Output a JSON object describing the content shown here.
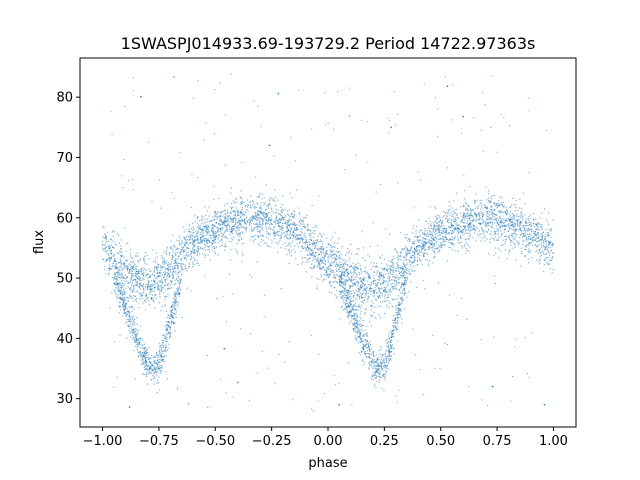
{
  "chart_data": {
    "type": "scatter",
    "title": "1SWASPJ014933.69-193729.2 Period 14722.97363s",
    "xlabel": "phase",
    "ylabel": "flux",
    "xlim": [
      -1.1,
      1.1
    ],
    "ylim": [
      25.3,
      86.5
    ],
    "x_ticks": [
      -1.0,
      -0.75,
      -0.5,
      -0.25,
      0.0,
      0.25,
      0.5,
      0.75,
      1.0
    ],
    "x_tick_labels": [
      "−1.00",
      "−0.75",
      "−0.50",
      "−0.25",
      "0.00",
      "0.25",
      "0.50",
      "0.75",
      "1.00"
    ],
    "y_ticks": [
      30,
      40,
      50,
      60,
      70,
      80
    ],
    "y_tick_labels": [
      "30",
      "40",
      "50",
      "60",
      "70",
      "80"
    ],
    "grid": false,
    "marker_color": "#1f77b4",
    "series": [
      {
        "envelope": {
          "phase": [
            -1.0,
            -0.95,
            -0.9,
            -0.85,
            -0.8,
            -0.75,
            -0.7,
            -0.65,
            -0.6,
            -0.55,
            -0.5,
            -0.45,
            -0.4,
            -0.35,
            -0.3,
            -0.25,
            -0.2,
            -0.15,
            -0.1,
            -0.05,
            0.0,
            0.05,
            0.1,
            0.15,
            0.2,
            0.25,
            0.3,
            0.35,
            0.4,
            0.45,
            0.5,
            0.55,
            0.6,
            0.65,
            0.7,
            0.75,
            0.8,
            0.85,
            0.9,
            0.95,
            1.0
          ],
          "median_flux": [
            55.0,
            53.0,
            51.0,
            49.5,
            49.0,
            49.5,
            51.5,
            54.0,
            55.8,
            57.0,
            58.0,
            58.8,
            59.4,
            59.8,
            60.0,
            59.6,
            59.0,
            57.8,
            56.2,
            54.2,
            52.5,
            51.0,
            49.5,
            48.8,
            48.5,
            49.0,
            50.5,
            53.0,
            55.0,
            56.5,
            57.5,
            58.2,
            58.8,
            59.4,
            59.8,
            59.6,
            59.0,
            58.2,
            57.3,
            56.2,
            55.2
          ],
          "spread": [
            5.0,
            5.0,
            5.0,
            5.0,
            5.0,
            5.0,
            5.0,
            4.8,
            4.5,
            4.5,
            4.5,
            4.5,
            4.5,
            4.5,
            4.5,
            4.5,
            4.5,
            4.5,
            4.5,
            4.8,
            5.0,
            5.0,
            5.0,
            5.0,
            5.0,
            5.0,
            5.0,
            4.8,
            4.5,
            4.5,
            4.5,
            4.5,
            4.5,
            4.5,
            4.5,
            4.5,
            4.5,
            4.5,
            4.5,
            4.6,
            5.0
          ]
        },
        "eclipse_branch": {
          "phase": [
            -0.95,
            -0.9,
            -0.85,
            -0.8,
            -0.78,
            -0.75,
            -0.72,
            -0.7,
            -0.65,
            0.05,
            0.1,
            0.15,
            0.2,
            0.22,
            0.25,
            0.28,
            0.3,
            0.35
          ],
          "flux": [
            50.0,
            45.0,
            40.0,
            36.0,
            35.0,
            35.5,
            39.5,
            42.5,
            50.0,
            50.0,
            45.0,
            40.0,
            36.0,
            35.0,
            35.5,
            39.5,
            42.5,
            50.0
          ]
        },
        "points": [
          {
            "x": -0.83,
            "y": 80.1
          },
          {
            "x": -0.26,
            "y": 72.0
          },
          {
            "x": 0.53,
            "y": 81.8
          },
          {
            "x": -0.22,
            "y": 80.6
          },
          {
            "x": 0.28,
            "y": 75.0
          },
          {
            "x": 0.05,
            "y": 29.0
          },
          {
            "x": 0.6,
            "y": 76.8
          },
          {
            "x": 0.73,
            "y": 32.0
          },
          {
            "x": -0.46,
            "y": 38.3
          },
          {
            "x": -0.4,
            "y": 32.7
          },
          {
            "x": 0.96,
            "y": 29.0
          },
          {
            "x": -0.88,
            "y": 28.6
          }
        ]
      }
    ]
  }
}
